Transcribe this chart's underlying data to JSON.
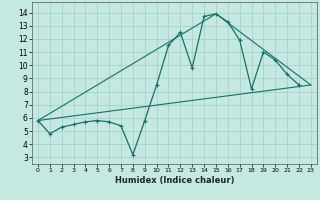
{
  "xlabel": "Humidex (Indice chaleur)",
  "ylabel": "",
  "xlim": [
    -0.5,
    23.5
  ],
  "ylim": [
    2.5,
    14.8
  ],
  "xticks": [
    0,
    1,
    2,
    3,
    4,
    5,
    6,
    7,
    8,
    9,
    10,
    11,
    12,
    13,
    14,
    15,
    16,
    17,
    18,
    19,
    20,
    21,
    22,
    23
  ],
  "yticks": [
    3,
    4,
    5,
    6,
    7,
    8,
    9,
    10,
    11,
    12,
    13,
    14
  ],
  "background_color": "#c5e8e0",
  "grid_color": "#9ecfc7",
  "line_color": "#1a7068",
  "curve1_x": [
    0,
    1,
    2,
    3,
    4,
    5,
    6,
    7,
    8,
    9,
    10,
    11,
    12,
    13,
    14,
    15,
    16,
    17,
    18,
    19,
    20,
    21,
    22
  ],
  "curve1_y": [
    5.8,
    4.8,
    5.3,
    5.5,
    5.7,
    5.8,
    5.7,
    5.4,
    3.2,
    5.8,
    8.5,
    11.5,
    12.5,
    9.8,
    13.7,
    13.9,
    13.3,
    11.9,
    8.2,
    11.0,
    10.4,
    9.3,
    8.5
  ],
  "curve2_x": [
    0,
    23
  ],
  "curve2_y": [
    5.8,
    8.5
  ],
  "curve3_x": [
    0,
    15,
    23
  ],
  "curve3_y": [
    5.8,
    13.9,
    8.5
  ]
}
